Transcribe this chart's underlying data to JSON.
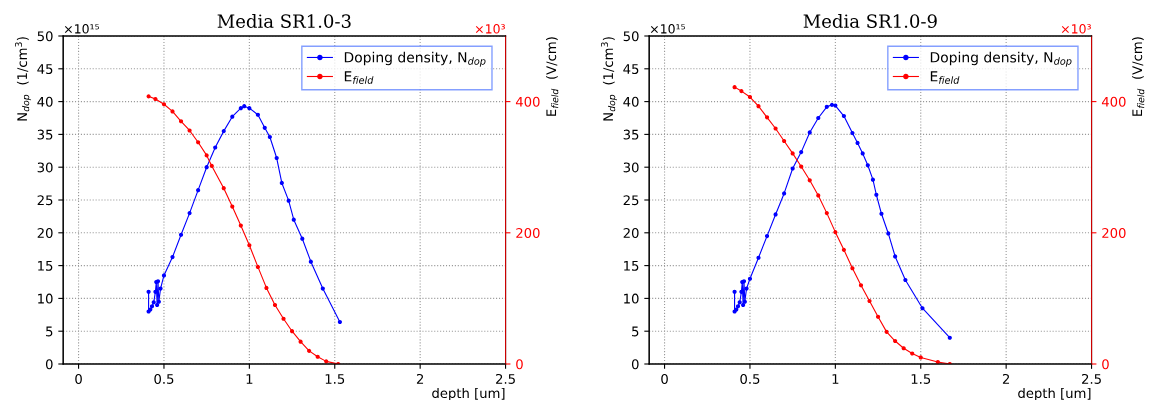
{
  "chart_data": [
    {
      "type": "line",
      "title": "Media SR1.0-3",
      "xlabel": "depth [um]",
      "ylabel": "N$_{dop}$  (1/cm$^{3}$)",
      "y2label": "E$_{field}$  (V/cm)",
      "annotations": [
        "×10¹⁵",
        "×10³"
      ],
      "xlim": [
        -0.09,
        2.5
      ],
      "xticks": [
        0,
        0.5,
        1,
        1.5,
        2,
        2.5
      ],
      "ylim": [
        0,
        50
      ],
      "yticks": [
        0,
        5,
        10,
        15,
        20,
        25,
        30,
        35,
        40,
        45,
        50
      ],
      "y2lim": [
        0,
        500
      ],
      "y2ticks": [
        0,
        200,
        400
      ],
      "grid": true,
      "legend": "top right",
      "marker": "circle",
      "line_style": "solid",
      "series": [
        {
          "name": "Doping density, N$_{dop}$",
          "color": "#0000ff",
          "x": [
            0.41,
            0.41,
            0.42,
            0.43,
            0.44,
            0.45,
            0.455,
            0.46,
            0.465,
            0.47,
            0.48,
            0.5,
            0.55,
            0.6,
            0.65,
            0.7,
            0.75,
            0.8,
            0.85,
            0.9,
            0.95,
            0.97,
            1.0,
            1.05,
            1.09,
            1.12,
            1.16,
            1.19,
            1.23,
            1.26,
            1.31,
            1.36,
            1.43,
            1.53
          ],
          "values": [
            11,
            8,
            8.3,
            8.8,
            9.4,
            11,
            12.5,
            9,
            12.6,
            9.5,
            11.5,
            13.5,
            16.3,
            19.7,
            23,
            26.5,
            30,
            33,
            35.5,
            37.7,
            39,
            39.3,
            39,
            38,
            36,
            34.6,
            31.4,
            27.6,
            24.9,
            22,
            19.1,
            15.6,
            11.5,
            6.4
          ]
        },
        {
          "name": "E$_{field}$",
          "color": "#ff0000",
          "axis": "y2",
          "x": [
            0.41,
            0.45,
            0.5,
            0.55,
            0.6,
            0.65,
            0.7,
            0.75,
            0.78,
            0.85,
            0.9,
            0.95,
            1.0,
            1.05,
            1.1,
            1.15,
            1.2,
            1.25,
            1.3,
            1.35,
            1.4,
            1.45,
            1.52
          ],
          "values": [
            408,
            404,
            396,
            385,
            370,
            356,
            338,
            318,
            302,
            268,
            240,
            211,
            181,
            148,
            116,
            90,
            69,
            50,
            34,
            20,
            11,
            4,
            0
          ]
        }
      ]
    },
    {
      "type": "line",
      "title": "Media SR1.0-9",
      "xlabel": "depth [um]",
      "ylabel": "N$_{dop}$  (1/cm$^{3}$)",
      "y2label": "E$_{field}$  (V/cm)",
      "annotations": [
        "×10¹⁵",
        "×10³"
      ],
      "xlim": [
        -0.09,
        2.5
      ],
      "xticks": [
        0,
        0.5,
        1,
        1.5,
        2,
        2.5
      ],
      "ylim": [
        0,
        50
      ],
      "yticks": [
        0,
        5,
        10,
        15,
        20,
        25,
        30,
        35,
        40,
        45,
        50
      ],
      "y2lim": [
        0,
        500
      ],
      "y2ticks": [
        0,
        200,
        400
      ],
      "grid": true,
      "legend": "top right",
      "marker": "circle",
      "line_style": "solid",
      "series": [
        {
          "name": "Doping density, N$_{dop}$",
          "color": "#0000ff",
          "x": [
            0.41,
            0.41,
            0.42,
            0.43,
            0.44,
            0.45,
            0.455,
            0.46,
            0.465,
            0.47,
            0.48,
            0.5,
            0.55,
            0.6,
            0.65,
            0.7,
            0.75,
            0.8,
            0.85,
            0.9,
            0.95,
            0.98,
            1.0,
            1.05,
            1.1,
            1.13,
            1.16,
            1.19,
            1.22,
            1.24,
            1.27,
            1.31,
            1.35,
            1.41,
            1.51,
            1.67
          ],
          "values": [
            11,
            8,
            8.3,
            8.8,
            9.4,
            11,
            12.5,
            9,
            12.6,
            9.5,
            11.5,
            13,
            16.2,
            19.5,
            22.8,
            26,
            29.8,
            32.3,
            35.3,
            37.5,
            39.2,
            39.5,
            39.4,
            37.8,
            35.2,
            33.7,
            32.1,
            30.3,
            28.1,
            25.8,
            22.9,
            19.9,
            16.4,
            12.8,
            8.5,
            4
          ]
        },
        {
          "name": "E$_{field}$",
          "color": "#ff0000",
          "axis": "y2",
          "x": [
            0.41,
            0.45,
            0.5,
            0.55,
            0.6,
            0.65,
            0.7,
            0.75,
            0.8,
            0.85,
            0.9,
            0.95,
            1.0,
            1.05,
            1.1,
            1.15,
            1.2,
            1.25,
            1.3,
            1.35,
            1.4,
            1.45,
            1.5,
            1.6,
            1.67
          ],
          "values": [
            422,
            416,
            407,
            393,
            376,
            359,
            340,
            321,
            301,
            280,
            257,
            230,
            201,
            174,
            146,
            120,
            96,
            72,
            49,
            35,
            24,
            16,
            10,
            3,
            0
          ]
        }
      ]
    }
  ]
}
